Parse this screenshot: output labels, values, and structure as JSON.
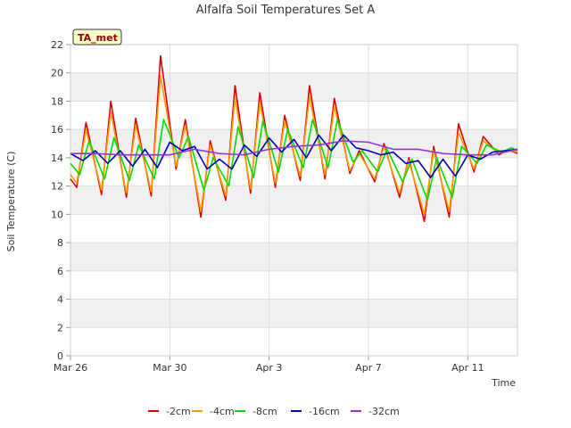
{
  "chart_data": {
    "type": "line",
    "title": "Alfalfa Soil Temperatures Set A",
    "xlabel": "Time",
    "ylabel": "Soil Temperature (C)",
    "badge": "TA_met",
    "ylim": [
      0,
      22
    ],
    "yticks": [
      0,
      2,
      4,
      6,
      8,
      10,
      12,
      14,
      16,
      18,
      20,
      22
    ],
    "xlim": [
      "2024-03-26",
      "2024-04-13"
    ],
    "xticks": [
      {
        "date": "2024-03-26",
        "label": "Mar 26"
      },
      {
        "date": "2024-03-30",
        "label": "Mar 30"
      },
      {
        "date": "2024-04-03",
        "label": "Apr 3"
      },
      {
        "date": "2024-04-07",
        "label": "Apr 7"
      },
      {
        "date": "2024-04-11",
        "label": "Apr 11"
      }
    ],
    "grid": true,
    "legend_position": "bottom",
    "series": [
      {
        "name": "-2cm",
        "color": "#dd0000",
        "x": [
          "2024-03-26 00:00",
          "2024-03-26 06:00",
          "2024-03-26 15:00",
          "2024-03-27 06:00",
          "2024-03-27 15:00",
          "2024-03-28 06:00",
          "2024-03-28 15:00",
          "2024-03-29 06:00",
          "2024-03-29 15:00",
          "2024-03-30 06:00",
          "2024-03-30 15:00",
          "2024-03-31 06:00",
          "2024-03-31 15:00",
          "2024-04-01 06:00",
          "2024-04-01 15:00",
          "2024-04-02 06:00",
          "2024-04-02 15:00",
          "2024-04-03 06:00",
          "2024-04-03 15:00",
          "2024-04-04 06:00",
          "2024-04-04 15:00",
          "2024-04-05 06:00",
          "2024-04-05 15:00",
          "2024-04-06 06:00",
          "2024-04-06 15:00",
          "2024-04-07 06:00",
          "2024-04-07 15:00",
          "2024-04-08 06:00",
          "2024-04-08 15:00",
          "2024-04-09 06:00",
          "2024-04-09 15:00",
          "2024-04-10 06:00",
          "2024-04-10 15:00",
          "2024-04-11 06:00",
          "2024-04-11 15:00",
          "2024-04-12 06:00",
          "2024-04-12 15:00",
          "2024-04-13 00:00"
        ],
        "y": [
          12.5,
          11.9,
          16.5,
          11.4,
          18.0,
          11.2,
          16.8,
          11.3,
          21.2,
          13.2,
          16.7,
          9.8,
          15.2,
          11.0,
          19.1,
          11.5,
          18.6,
          11.9,
          17.0,
          12.4,
          19.1,
          12.5,
          18.2,
          12.9,
          14.5,
          12.3,
          15.0,
          11.2,
          14.0,
          9.5,
          14.8,
          9.8,
          16.4,
          13.0,
          15.5,
          14.2,
          14.6,
          14.3
        ]
      },
      {
        "name": "-4cm",
        "color": "#ff9900",
        "x": [
          "2024-03-26 00:00",
          "2024-03-26 06:00",
          "2024-03-26 15:00",
          "2024-03-27 06:00",
          "2024-03-27 15:00",
          "2024-03-28 06:00",
          "2024-03-28 15:00",
          "2024-03-29 06:00",
          "2024-03-29 15:00",
          "2024-03-30 06:00",
          "2024-03-30 15:00",
          "2024-03-31 06:00",
          "2024-03-31 15:00",
          "2024-04-01 06:00",
          "2024-04-01 15:00",
          "2024-04-02 06:00",
          "2024-04-02 15:00",
          "2024-04-03 06:00",
          "2024-04-03 15:00",
          "2024-04-04 06:00",
          "2024-04-04 15:00",
          "2024-04-05 06:00",
          "2024-04-05 15:00",
          "2024-04-06 06:00",
          "2024-04-06 15:00",
          "2024-04-07 06:00",
          "2024-04-07 15:00",
          "2024-04-08 06:00",
          "2024-04-08 15:00",
          "2024-04-09 06:00",
          "2024-04-09 15:00",
          "2024-04-10 06:00",
          "2024-04-10 15:00",
          "2024-04-11 06:00",
          "2024-04-11 15:00",
          "2024-04-12 06:00",
          "2024-04-12 15:00",
          "2024-04-13 00:00"
        ],
        "y": [
          12.8,
          12.2,
          16.0,
          11.7,
          17.2,
          11.5,
          16.3,
          11.6,
          19.8,
          13.4,
          16.3,
          10.2,
          14.9,
          11.3,
          18.2,
          11.8,
          17.9,
          12.2,
          16.6,
          12.7,
          18.3,
          12.8,
          17.6,
          13.1,
          14.3,
          12.5,
          14.8,
          11.5,
          13.8,
          10.0,
          14.5,
          10.2,
          15.8,
          13.2,
          15.2,
          14.3,
          14.6,
          14.4
        ]
      },
      {
        "name": "-8cm",
        "color": "#00dd00",
        "x": [
          "2024-03-26 00:00",
          "2024-03-26 09:00",
          "2024-03-26 18:00",
          "2024-03-27 09:00",
          "2024-03-27 18:00",
          "2024-03-28 09:00",
          "2024-03-28 18:00",
          "2024-03-29 09:00",
          "2024-03-29 18:00",
          "2024-03-30 09:00",
          "2024-03-30 18:00",
          "2024-03-31 09:00",
          "2024-03-31 18:00",
          "2024-04-01 09:00",
          "2024-04-01 18:00",
          "2024-04-02 09:00",
          "2024-04-02 18:00",
          "2024-04-03 09:00",
          "2024-04-03 18:00",
          "2024-04-04 09:00",
          "2024-04-04 18:00",
          "2024-04-05 09:00",
          "2024-04-05 18:00",
          "2024-04-06 09:00",
          "2024-04-06 18:00",
          "2024-04-07 09:00",
          "2024-04-07 18:00",
          "2024-04-08 09:00",
          "2024-04-08 18:00",
          "2024-04-09 09:00",
          "2024-04-09 18:00",
          "2024-04-10 09:00",
          "2024-04-10 18:00",
          "2024-04-11 09:00",
          "2024-04-11 18:00",
          "2024-04-12 09:00",
          "2024-04-12 18:00",
          "2024-04-13 00:00"
        ],
        "y": [
          13.6,
          12.8,
          15.2,
          12.5,
          15.4,
          12.4,
          14.9,
          12.5,
          16.7,
          14.0,
          15.5,
          11.7,
          14.0,
          12.0,
          16.2,
          12.6,
          16.6,
          13.0,
          16.0,
          13.3,
          16.7,
          13.3,
          16.7,
          13.7,
          14.5,
          13.0,
          14.6,
          12.3,
          13.9,
          11.0,
          14.0,
          11.2,
          14.8,
          13.6,
          14.9,
          14.4,
          14.7,
          14.5
        ]
      },
      {
        "name": "-16cm",
        "color": "#0000bb",
        "x": [
          "2024-03-26 00:00",
          "2024-03-26 12:00",
          "2024-03-27 00:00",
          "2024-03-27 12:00",
          "2024-03-28 00:00",
          "2024-03-28 12:00",
          "2024-03-29 00:00",
          "2024-03-29 12:00",
          "2024-03-30 00:00",
          "2024-03-30 12:00",
          "2024-03-31 00:00",
          "2024-03-31 12:00",
          "2024-04-01 00:00",
          "2024-04-01 12:00",
          "2024-04-02 00:00",
          "2024-04-02 12:00",
          "2024-04-03 00:00",
          "2024-04-03 12:00",
          "2024-04-04 00:00",
          "2024-04-04 12:00",
          "2024-04-05 00:00",
          "2024-04-05 12:00",
          "2024-04-06 00:00",
          "2024-04-06 12:00",
          "2024-04-07 00:00",
          "2024-04-07 12:00",
          "2024-04-08 00:00",
          "2024-04-08 12:00",
          "2024-04-09 00:00",
          "2024-04-09 12:00",
          "2024-04-10 00:00",
          "2024-04-10 12:00",
          "2024-04-11 00:00",
          "2024-04-11 12:00",
          "2024-04-12 00:00",
          "2024-04-12 12:00",
          "2024-04-13 00:00"
        ],
        "y": [
          14.3,
          13.8,
          14.5,
          13.6,
          14.5,
          13.4,
          14.6,
          13.3,
          15.1,
          14.5,
          14.8,
          13.2,
          13.9,
          13.2,
          14.9,
          14.1,
          15.4,
          14.4,
          15.3,
          14.0,
          15.6,
          14.5,
          15.6,
          14.7,
          14.5,
          14.2,
          14.4,
          13.6,
          13.8,
          12.6,
          13.9,
          12.7,
          14.2,
          13.9,
          14.4,
          14.5,
          14.6
        ]
      },
      {
        "name": "-32cm",
        "color": "#9933cc",
        "x": [
          "2024-03-26 00:00",
          "2024-03-27 00:00",
          "2024-03-28 00:00",
          "2024-03-29 00:00",
          "2024-03-30 00:00",
          "2024-03-31 00:00",
          "2024-04-01 00:00",
          "2024-04-02 00:00",
          "2024-04-03 00:00",
          "2024-04-04 00:00",
          "2024-04-05 00:00",
          "2024-04-06 00:00",
          "2024-04-07 00:00",
          "2024-04-08 00:00",
          "2024-04-09 00:00",
          "2024-04-10 00:00",
          "2024-04-11 00:00",
          "2024-04-12 00:00",
          "2024-04-13 00:00"
        ],
        "y": [
          14.3,
          14.3,
          14.2,
          14.2,
          14.2,
          14.6,
          14.3,
          14.2,
          14.6,
          14.8,
          14.9,
          15.2,
          15.1,
          14.6,
          14.6,
          14.3,
          14.2,
          14.2,
          14.6
        ]
      }
    ]
  }
}
